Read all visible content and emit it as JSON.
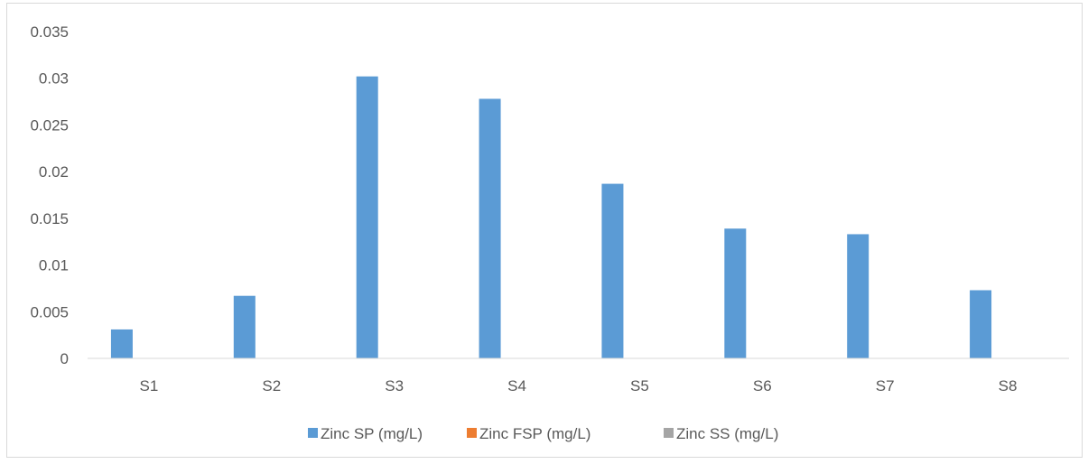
{
  "chart_data": {
    "type": "bar",
    "categories": [
      "S1",
      "S2",
      "S3",
      "S4",
      "S5",
      "S6",
      "S7",
      "S8"
    ],
    "series": [
      {
        "name": "Zinc SP (mg/L)",
        "color": "#5b9bd5",
        "values": [
          0.0031,
          0.0067,
          0.0302,
          0.0278,
          0.0187,
          0.0139,
          0.0133,
          0.0073
        ]
      },
      {
        "name": "Zinc FSP (mg/L)",
        "color": "#ed7d31",
        "values": [
          0,
          0,
          0,
          0,
          0,
          0,
          0,
          0
        ]
      },
      {
        "name": "Zinc SS (mg/L)",
        "color": "#a5a5a5",
        "values": [
          0,
          0,
          0,
          0,
          0,
          0,
          0,
          0
        ]
      }
    ],
    "yticks": [
      "0",
      "0.005",
      "0.01",
      "0.015",
      "0.02",
      "0.025",
      "0.03",
      "0.035"
    ],
    "ylim": [
      0,
      0.035
    ],
    "title": "",
    "xlabel": "",
    "ylabel": "",
    "grid": false,
    "legend_position": "bottom"
  }
}
